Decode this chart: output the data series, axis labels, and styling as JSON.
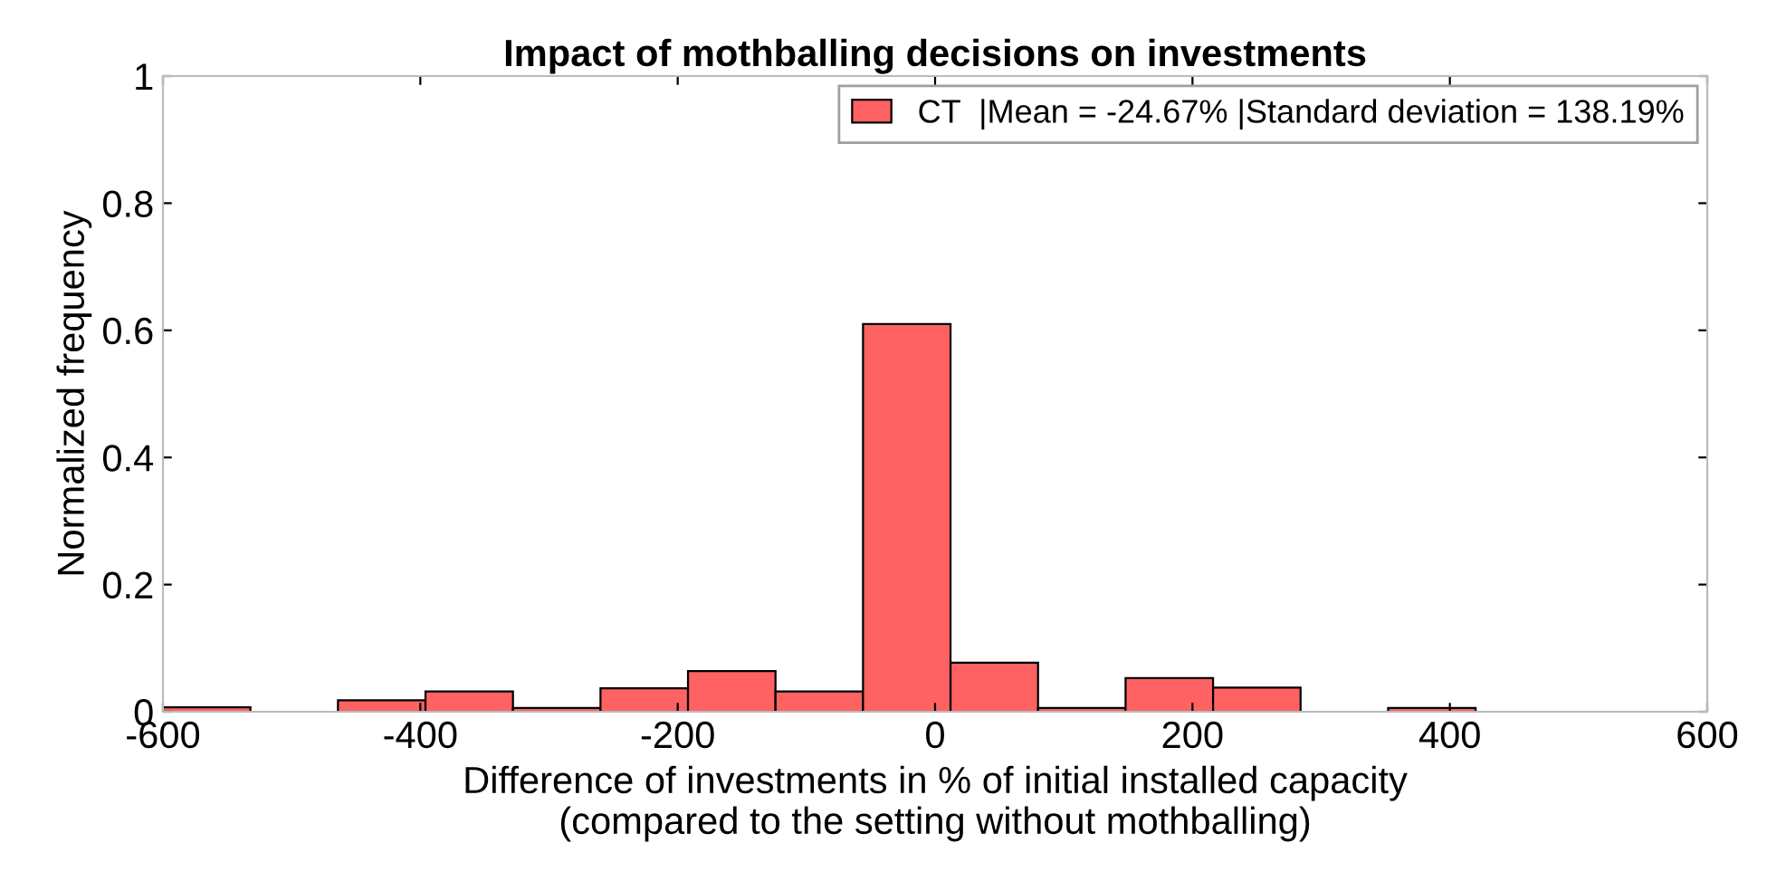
{
  "chart_data": {
    "type": "histogram",
    "title": "Impact of mothballing decisions on investments",
    "xlabel": "Difference of investments in % of initial installed capacity\n(compared to the setting without mothballing)",
    "ylabel": "Normalized frequency",
    "bins": [
      -600,
      -532,
      -464,
      -396,
      -328,
      -260,
      -192,
      -124,
      -56,
      12,
      80,
      148,
      216,
      284,
      352,
      420
    ],
    "series": [
      {
        "name": "CT  |Mean = -24.67% |Standard deviation = 138.19%",
        "color": "#ff6262",
        "values": [
          0.007,
          0,
          0.018,
          0.032,
          0.006,
          0.037,
          0.064,
          0.032,
          0.61,
          0.077,
          0.006,
          0.053,
          0.038,
          0,
          0.006
        ]
      }
    ],
    "xlim": [
      -600,
      600
    ],
    "xticks": [
      -600,
      -400,
      -200,
      0,
      200,
      400,
      600
    ],
    "ylim": [
      0,
      1
    ],
    "yticks": [
      0,
      0.2,
      0.4,
      0.6,
      0.8,
      1
    ],
    "grid": false,
    "legend": "top right"
  }
}
